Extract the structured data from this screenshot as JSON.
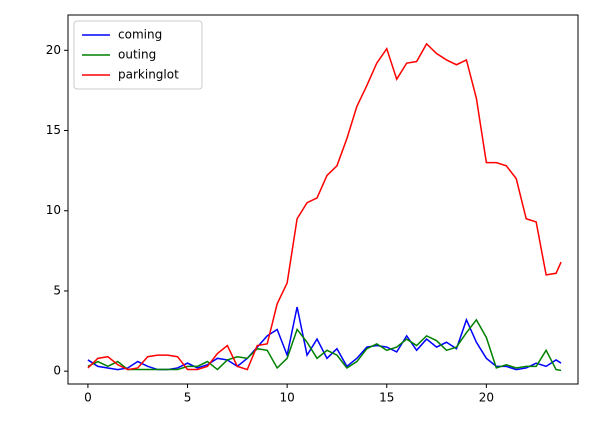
{
  "chart_data": {
    "type": "line",
    "x": [
      0,
      0.5,
      1,
      1.5,
      2,
      2.5,
      3,
      3.5,
      4,
      4.5,
      5,
      5.5,
      6,
      6.5,
      7,
      7.5,
      8,
      8.5,
      9,
      9.5,
      10,
      10.5,
      11,
      11.5,
      12,
      12.5,
      13,
      13.5,
      14,
      14.5,
      15,
      15.5,
      16,
      16.5,
      17,
      17.5,
      18,
      18.5,
      19,
      19.5,
      20,
      20.5,
      21,
      21.5,
      22,
      22.5,
      23,
      23.5,
      23.75
    ],
    "series": [
      {
        "name": "coming",
        "color": "#0000ff",
        "values": [
          0.7,
          0.3,
          0.2,
          0.1,
          0.2,
          0.6,
          0.3,
          0.1,
          0.1,
          0.2,
          0.5,
          0.2,
          0.4,
          0.8,
          0.7,
          0.3,
          0.8,
          1.5,
          2.2,
          2.6,
          1.0,
          4.0,
          1.0,
          2.0,
          0.8,
          1.4,
          0.3,
          0.8,
          1.5,
          1.6,
          1.5,
          1.2,
          2.2,
          1.3,
          2.0,
          1.5,
          1.8,
          1.4,
          3.2,
          1.8,
          0.8,
          0.3,
          0.3,
          0.1,
          0.2,
          0.5,
          0.3,
          0.7,
          0.5
        ]
      },
      {
        "name": "outing",
        "color": "#008000",
        "values": [
          0.3,
          0.6,
          0.3,
          0.6,
          0.1,
          0.1,
          0.1,
          0.1,
          0.1,
          0.1,
          0.3,
          0.3,
          0.6,
          0.1,
          0.7,
          0.9,
          0.8,
          1.4,
          1.3,
          0.2,
          0.8,
          2.6,
          1.8,
          0.8,
          1.3,
          1.0,
          0.2,
          0.6,
          1.4,
          1.7,
          1.3,
          1.5,
          2.0,
          1.6,
          2.2,
          1.9,
          1.3,
          1.5,
          2.4,
          3.2,
          2.1,
          0.2,
          0.4,
          0.2,
          0.3,
          0.3,
          1.3,
          0.1,
          0.05
        ]
      },
      {
        "name": "parkinglot",
        "color": "#ff0000",
        "values": [
          0.2,
          0.8,
          0.9,
          0.4,
          0.1,
          0.2,
          0.9,
          1.0,
          1.0,
          0.9,
          0.1,
          0.1,
          0.3,
          1.1,
          1.6,
          0.3,
          0.1,
          1.6,
          1.7,
          4.2,
          5.5,
          9.5,
          10.5,
          10.8,
          12.2,
          12.8,
          14.5,
          16.5,
          17.8,
          19.2,
          20.1,
          18.2,
          19.2,
          19.3,
          20.4,
          19.8,
          19.4,
          19.1,
          19.4,
          17.0,
          13.0,
          13.0,
          12.8,
          12.0,
          9.5,
          9.3,
          6.0,
          6.1,
          6.8
        ]
      }
    ],
    "xlim": [
      -1.0,
      24.6
    ],
    "ylim": [
      -0.8,
      22.2
    ],
    "xticks": [
      0,
      5,
      10,
      15,
      20
    ],
    "yticks": [
      0,
      5,
      10,
      15,
      20
    ],
    "legend": "upper left"
  }
}
